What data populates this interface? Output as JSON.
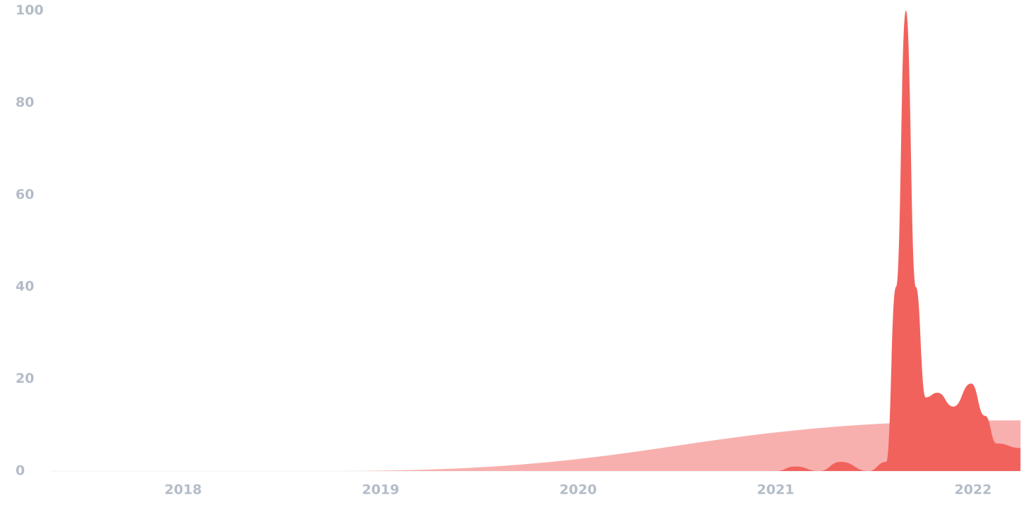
{
  "chart_data": {
    "type": "area",
    "xlim": [
      2017.33,
      2022.24
    ],
    "xticks": [
      2018,
      2019,
      2020,
      2021,
      2022
    ],
    "ylim": [
      0,
      100
    ],
    "yticks": [
      0,
      20,
      40,
      60,
      80,
      100
    ],
    "grid": false,
    "series": [
      {
        "color": "#f8b0ae",
        "x": [
          2017.33,
          2018.76,
          2022.24
        ],
        "values": [
          0,
          0,
          11
        ]
      },
      {
        "color": "#f2625d",
        "x": [
          2017.33,
          2021.0,
          2021.1,
          2021.22,
          2021.33,
          2021.47,
          2021.56,
          2021.61,
          2021.66,
          2021.71,
          2021.76,
          2021.82,
          2021.9,
          2021.99,
          2022.06,
          2022.12,
          2022.24
        ],
        "values": [
          0,
          0,
          1,
          0,
          2,
          0,
          2,
          40,
          100,
          40,
          16,
          17,
          14,
          19,
          12,
          6,
          5
        ]
      }
    ]
  }
}
